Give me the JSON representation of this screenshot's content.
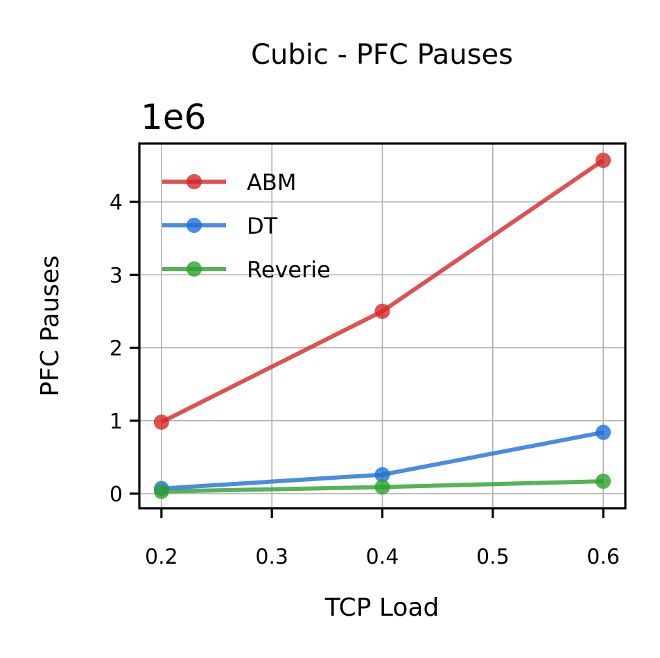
{
  "chart_data": {
    "type": "line",
    "title": "Cubic - PFC Pauses",
    "xlabel": "TCP Load",
    "ylabel": "PFC Pauses",
    "y_offset_label": "1e6",
    "x": [
      0.2,
      0.4,
      0.6
    ],
    "xlim": [
      0.18,
      0.62
    ],
    "ylim": [
      -0.2,
      4.8
    ],
    "y_scale_factor": 1000000,
    "xticks": [
      "0.2",
      "0.3",
      "0.4",
      "0.5",
      "0.6"
    ],
    "yticks": [
      "0",
      "1",
      "2",
      "3",
      "4"
    ],
    "grid": true,
    "legend_position": "upper-left",
    "series": [
      {
        "name": "ABM",
        "color": "#d62728",
        "values": [
          0.98,
          2.5,
          4.57
        ]
      },
      {
        "name": "DT",
        "color": "#1f6fd6",
        "values": [
          0.07,
          0.26,
          0.84
        ]
      },
      {
        "name": "Reverie",
        "color": "#2ca02c",
        "values": [
          0.03,
          0.09,
          0.17
        ]
      }
    ]
  }
}
